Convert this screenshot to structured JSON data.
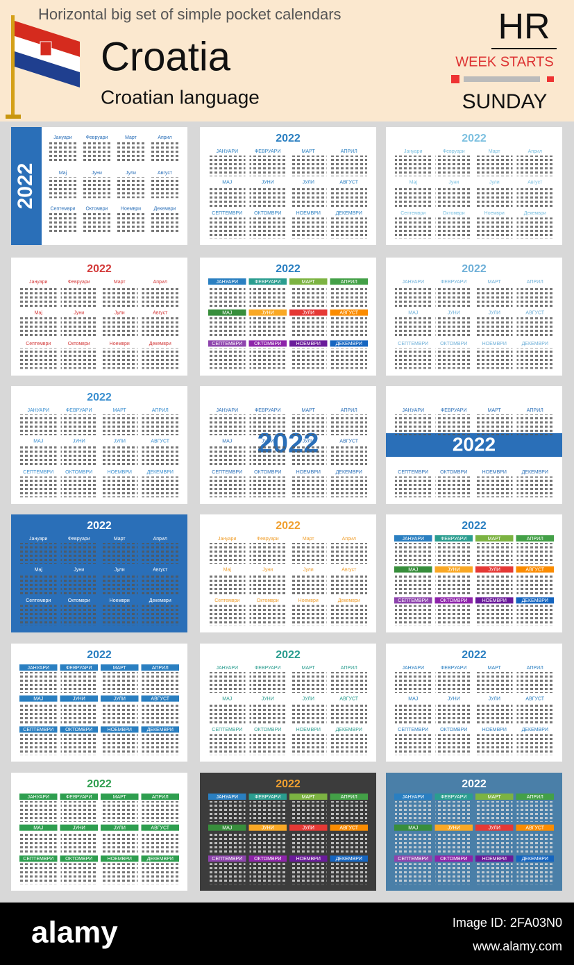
{
  "header": {
    "title": "Horizontal big set of simple pocket calendars",
    "country": "Croatia",
    "language": "Croatian language",
    "code": "HR",
    "week_starts": "WEEK STARTS",
    "day": "SUNDAY"
  },
  "months": {
    "title_case": [
      "Јануари",
      "Февруари",
      "Март",
      "Април",
      "Мај",
      "Јуни",
      "Јули",
      "Август",
      "Септември",
      "Октомври",
      "Ноември",
      "Декември"
    ],
    "upper_case": [
      "ЈАНУАРИ",
      "ФЕВРУАРИ",
      "МАРТ",
      "АПРИЛ",
      "МАЈ",
      "ЈУНИ",
      "ЈУЛИ",
      "АВГУСТ",
      "СЕПТЕМВРИ",
      "ОКТОМВРИ",
      "НОЕМВРИ",
      "ДЕКЕМВРИ"
    ]
  },
  "calendars": [
    {
      "year": "2022",
      "months": "title_case",
      "accent": "#2a6fb8",
      "background": "#ffffff"
    },
    {
      "year": "2022",
      "months": "upper_case",
      "accent": "#2a7fc1",
      "background": "#ffffff"
    },
    {
      "year": "2022",
      "months": "title_case",
      "accent": "#7cc0e0",
      "background": "#ffffff"
    },
    {
      "year": "2022",
      "months": "title_case",
      "accent": "#d33a3a",
      "background": "#ffffff"
    },
    {
      "year": "2022",
      "months": "upper_case",
      "accent": "#2a7fc1",
      "background": "#ffffff"
    },
    {
      "year": "2022",
      "months": "upper_case",
      "accent": "#6fb0d8",
      "background": "#ffffff"
    },
    {
      "year": "2022",
      "months": "upper_case",
      "accent": "#3a8fd0",
      "background": "#ffffff"
    },
    {
      "year": "2022",
      "months": "upper_case",
      "accent": "#2a6fb8",
      "background": "#ffffff"
    },
    {
      "year": "2022",
      "months": "upper_case",
      "accent": "#2a6fb8",
      "background": "#ffffff"
    },
    {
      "year": "2022",
      "months": "title_case",
      "accent": "#ffffff",
      "background": "#2a6fb8"
    },
    {
      "year": "2022",
      "months": "title_case",
      "accent": "#f0a030",
      "background": "#ffffff"
    },
    {
      "year": "2022",
      "months": "upper_case",
      "accent": "#2a7fc1",
      "background": "#ffffff"
    },
    {
      "year": "2022",
      "months": "upper_case",
      "accent": "#2a7fc1",
      "background": "#ffffff"
    },
    {
      "year": "2022",
      "months": "upper_case",
      "accent": "#2a9d8f",
      "background": "#ffffff"
    },
    {
      "year": "2022",
      "months": "upper_case",
      "accent": "#2a7fc1",
      "background": "#ffffff"
    },
    {
      "year": "2022",
      "months": "upper_case",
      "accent": "#2e9e4f",
      "background": "#ffffff"
    },
    {
      "year": "2022",
      "months": "upper_case",
      "accent": "#f0a030",
      "background": "#3c3c3c"
    },
    {
      "year": "2022",
      "months": "upper_case",
      "accent": "#ffffff",
      "background": "#4a7fa8"
    }
  ],
  "footer": {
    "brand": "alamy",
    "image_id": "Image ID: 2FA03N0",
    "site": "www.alamy.com"
  }
}
